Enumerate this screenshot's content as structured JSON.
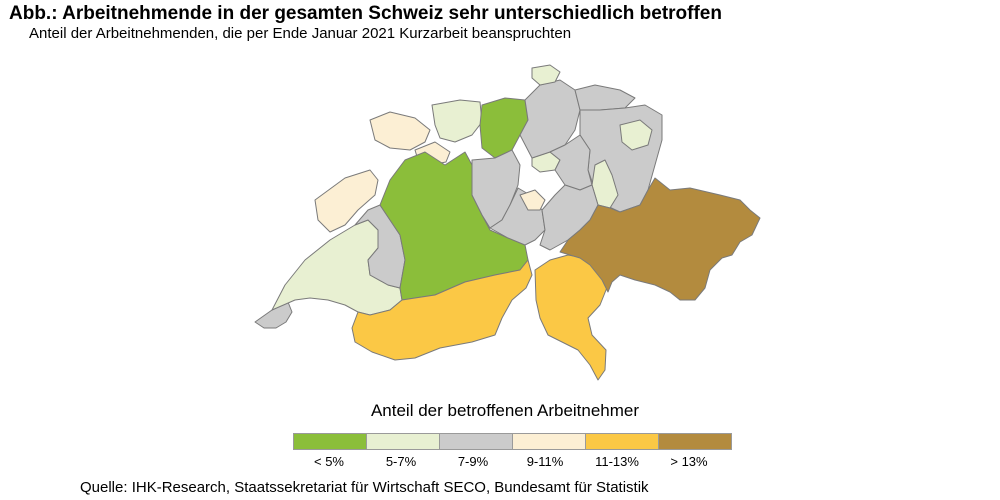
{
  "header": {
    "title": "Abb.: Arbeitnehmende in der gesamten Schweiz sehr unterschiedlich betroffen",
    "subtitle": "Anteil der Arbeitnehmenden, die per Ende Januar 2021 Kurzarbeit beanspruchten"
  },
  "legend": {
    "title": "Anteil der betroffenen Arbeitnehmer",
    "classes": [
      {
        "label": "< 5%",
        "color": "#8bbe3a"
      },
      {
        "label": "5-7%",
        "color": "#e8f0d2"
      },
      {
        "label": "7-9%",
        "color": "#cbcbcb"
      },
      {
        "label": "9-11%",
        "color": "#fcefd4"
      },
      {
        "label": "11-13%",
        "color": "#fbc845"
      },
      {
        "label": "> 13%",
        "color": "#b38b3e"
      }
    ]
  },
  "map_regions": [
    {
      "id": "geneva",
      "class": 2
    },
    {
      "id": "vaud",
      "class": 1
    },
    {
      "id": "neuchatel",
      "class": 3
    },
    {
      "id": "jura",
      "class": 3
    },
    {
      "id": "fribourg",
      "class": 2
    },
    {
      "id": "solothurn",
      "class": 3
    },
    {
      "id": "basel",
      "class": 1
    },
    {
      "id": "bern",
      "class": 0
    },
    {
      "id": "aargau",
      "class": 0
    },
    {
      "id": "lucerne",
      "class": 2
    },
    {
      "id": "zug",
      "class": 1
    },
    {
      "id": "zurich",
      "class": 2
    },
    {
      "id": "schaffhausen",
      "class": 1
    },
    {
      "id": "thurgau",
      "class": 2
    },
    {
      "id": "st-gallen",
      "class": 2
    },
    {
      "id": "appenzell",
      "class": 1
    },
    {
      "id": "glarus",
      "class": 1
    },
    {
      "id": "schwyz",
      "class": 2
    },
    {
      "id": "central",
      "class": 2
    },
    {
      "id": "nidwalden",
      "class": 3
    },
    {
      "id": "uri",
      "class": 2
    },
    {
      "id": "valais",
      "class": 4
    },
    {
      "id": "ticino",
      "class": 4
    },
    {
      "id": "graubuenden",
      "class": 5
    }
  ],
  "source": "Quelle: IHK-Research, Staatssekretariat für Wirtschaft SECO, Bundesamt für Statistik"
}
